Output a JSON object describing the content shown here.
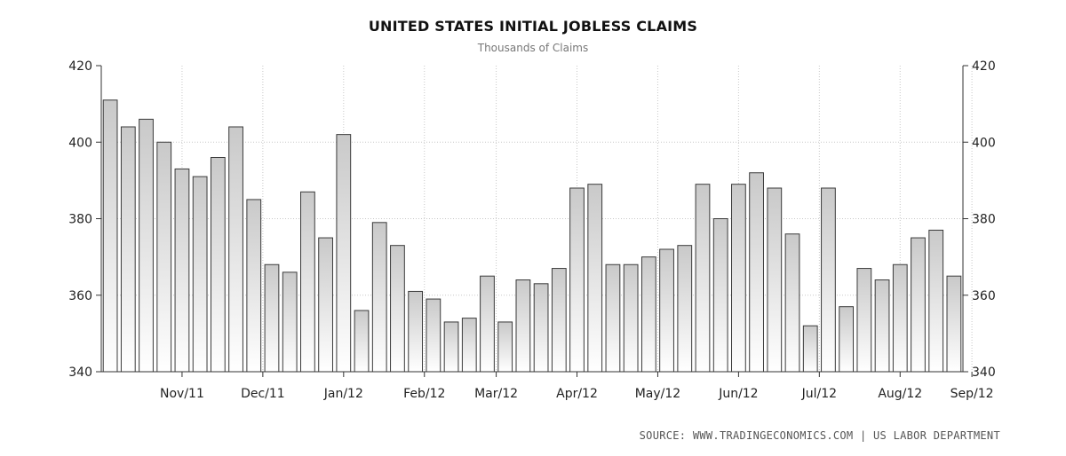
{
  "chart_data": {
    "type": "bar",
    "title": "UNITED STATES INITIAL JOBLESS CLAIMS",
    "subtitle": "Thousands of Claims",
    "source": "SOURCE:  WWW.TRADINGECONOMICS.COM  |  US LABOR DEPARTMENT",
    "ylim": [
      340,
      420
    ],
    "y_ticks": [
      "340",
      "360",
      "380",
      "400",
      "420"
    ],
    "x_ticks": [
      {
        "label": "Nov/11",
        "index": 4
      },
      {
        "label": "Dec/11",
        "index": 8.5
      },
      {
        "label": "Jan/12",
        "index": 13
      },
      {
        "label": "Feb/12",
        "index": 17.5
      },
      {
        "label": "Mar/12",
        "index": 21.5
      },
      {
        "label": "Apr/12",
        "index": 26
      },
      {
        "label": "May/12",
        "index": 30.5
      },
      {
        "label": "Jun/12",
        "index": 35
      },
      {
        "label": "Jul/12",
        "index": 39.5
      },
      {
        "label": "Aug/12",
        "index": 44
      },
      {
        "label": "Sep/12",
        "index": 48
      }
    ],
    "grid": true,
    "values": [
      411,
      404,
      406,
      400,
      393,
      391,
      396,
      404,
      385,
      368,
      366,
      387,
      375,
      402,
      356,
      379,
      373,
      361,
      359,
      353,
      354,
      365,
      353,
      364,
      363,
      367,
      388,
      389,
      368,
      368,
      370,
      372,
      373,
      389,
      380,
      389,
      392,
      388,
      376,
      352,
      388,
      357,
      367,
      364,
      368,
      375,
      377,
      365
    ]
  }
}
